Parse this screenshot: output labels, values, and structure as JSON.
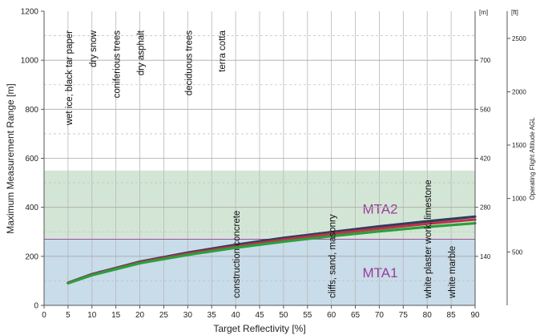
{
  "chart_data": {
    "type": "line",
    "xlabel": "Target Reflectivity [%]",
    "ylabel": "Maximum Measurement Range [m]",
    "xlim": [
      0,
      90
    ],
    "ylim": [
      0,
      1200
    ],
    "x_ticks": [
      "0",
      "5",
      "10",
      "15",
      "20",
      "25",
      "30",
      "35",
      "40",
      "45",
      "50",
      "55",
      "60",
      "65",
      "70",
      "75",
      "80",
      "85",
      "90"
    ],
    "y_ticks": [
      "0",
      "200",
      "400",
      "600",
      "800",
      "1000",
      "1200"
    ],
    "right_axis_1": {
      "unit": "[m]",
      "ticks": [
        {
          "label": "140",
          "y": 200
        },
        {
          "label": "280",
          "y": 400
        },
        {
          "label": "420",
          "y": 600
        },
        {
          "label": "560",
          "y": 800
        },
        {
          "label": "700",
          "y": 1000
        }
      ]
    },
    "right_axis_2": {
      "unit": "[ft]",
      "title": "Operating Flight Altitude AGL",
      "ticks": [
        {
          "label": "500",
          "y": 218
        },
        {
          "label": "1000",
          "y": 436
        },
        {
          "label": "1500",
          "y": 654
        },
        {
          "label": "2000",
          "y": 871
        },
        {
          "label": "2500",
          "y": 1089
        }
      ]
    },
    "zones": [
      {
        "label": "MTA1",
        "y_from": 0,
        "y_to": 270,
        "color": "#c9dce9"
      },
      {
        "label": "MTA2",
        "y_from": 270,
        "y_to": 550,
        "color": "#d3e6d5"
      }
    ],
    "zone_boundary": 270,
    "series": [
      {
        "color": "#2d3e5c",
        "x": [
          5,
          10,
          20,
          30,
          40,
          50,
          60,
          70,
          80,
          90
        ],
        "values": [
          92,
          127,
          178,
          215,
          247,
          275,
          299,
          322,
          343,
          362
        ]
      },
      {
        "color": "#c0304a",
        "x": [
          5,
          10,
          20,
          30,
          40,
          50,
          60,
          70,
          80,
          90
        ],
        "values": [
          91,
          125,
          175,
          211,
          241,
          268,
          292,
          313,
          333,
          350
        ]
      },
      {
        "color": "#2aa03a",
        "x": [
          5,
          10,
          20,
          30,
          40,
          50,
          60,
          70,
          80,
          90
        ],
        "values": [
          90,
          123,
          172,
          206,
          235,
          260,
          282,
          302,
          320,
          335
        ]
      }
    ],
    "materials": [
      {
        "label": "wet ice, black tar paper",
        "x": 5,
        "position": "top"
      },
      {
        "label": "dry snow",
        "x": 10,
        "position": "top"
      },
      {
        "label": "coniferious trees",
        "x": 15,
        "position": "top"
      },
      {
        "label": "dry asphalt",
        "x": 20,
        "position": "top"
      },
      {
        "label": "deciduous trees",
        "x": 30,
        "position": "top"
      },
      {
        "label": "terra cotta",
        "x": 37,
        "position": "top"
      },
      {
        "label": "construction concrete",
        "x": 40,
        "position": "bottom"
      },
      {
        "label": "cliffs, sand, masonry",
        "x": 60,
        "position": "bottom"
      },
      {
        "label": "white plaster work, limestone",
        "x": 80,
        "position": "bottom"
      },
      {
        "label": "white marble",
        "x": 85,
        "position": "bottom"
      }
    ]
  }
}
